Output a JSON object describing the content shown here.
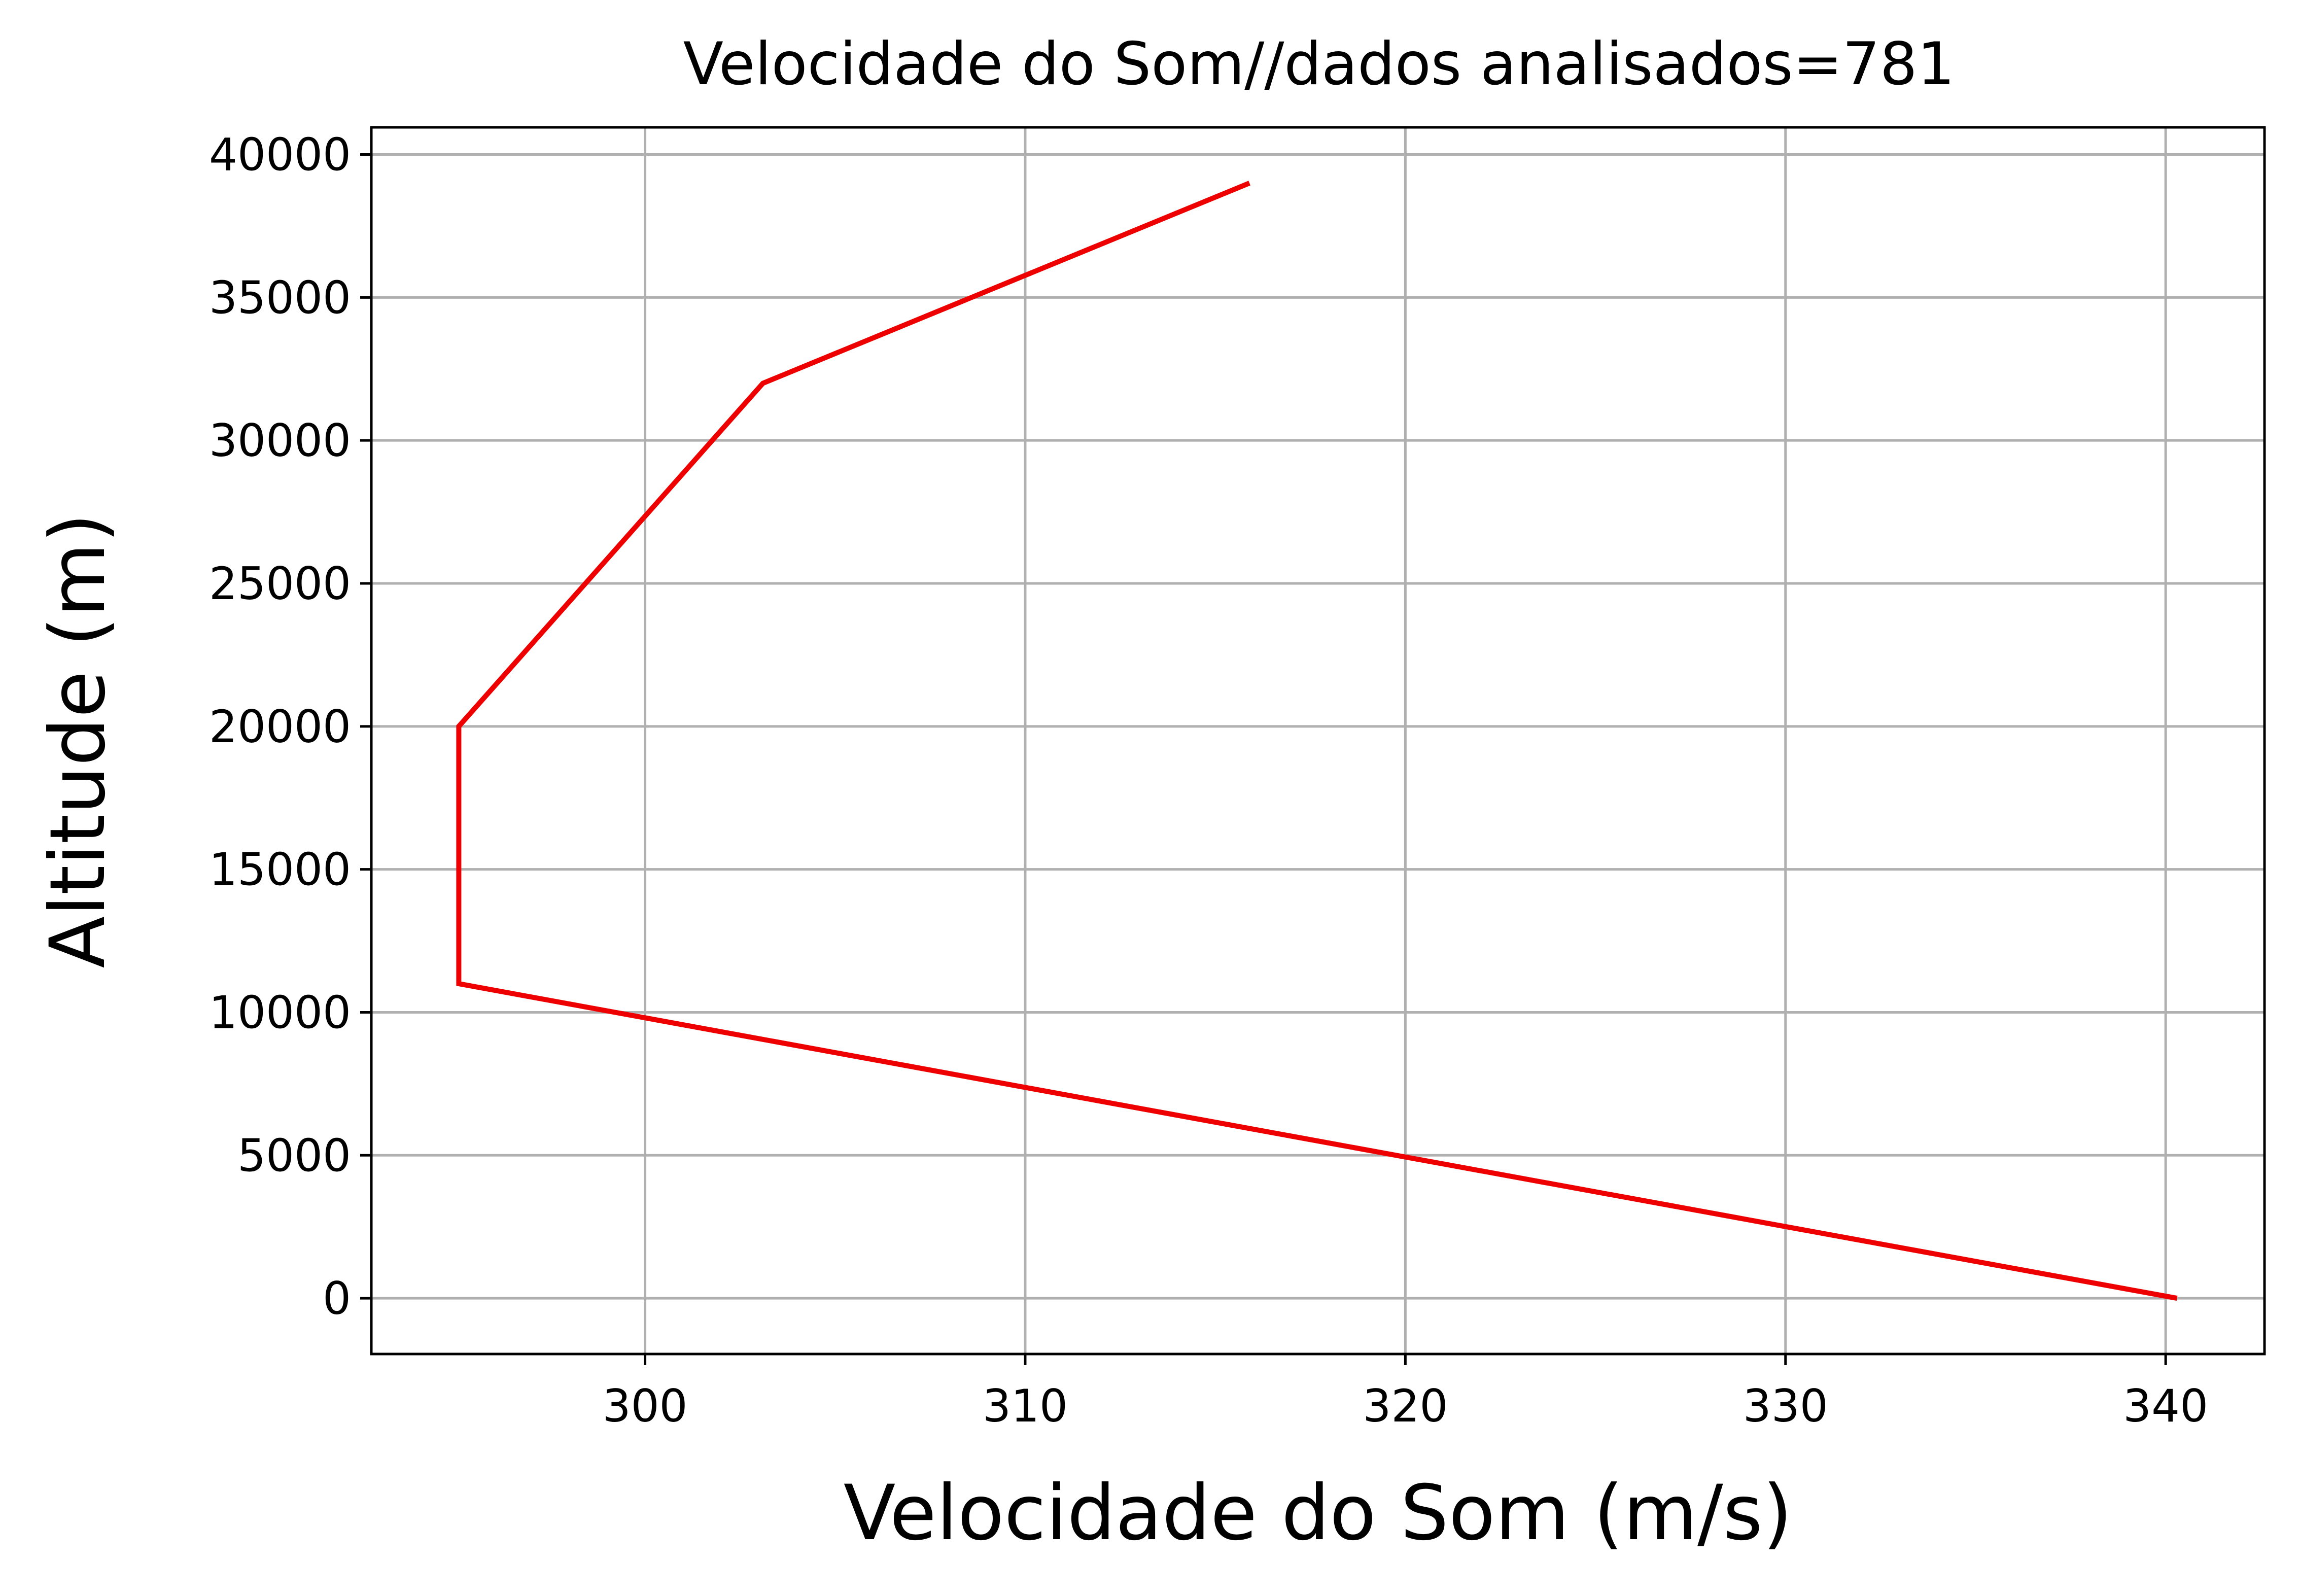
{
  "chart_data": {
    "type": "line",
    "title": "Velocidade do Som//dados analisados=781",
    "xlabel": "Velocidade do Som (m/s)",
    "ylabel": "Altitude (m)",
    "xlim": [
      292.8,
      342.6
    ],
    "ylim": [
      -1950,
      40950
    ],
    "x_ticks": [
      300,
      310,
      320,
      330,
      340
    ],
    "x_tick_labels": [
      "300",
      "310",
      "320",
      "330",
      "340"
    ],
    "y_ticks": [
      0,
      5000,
      10000,
      15000,
      20000,
      25000,
      30000,
      35000,
      40000
    ],
    "y_tick_labels": [
      "0",
      "5000",
      "10000",
      "15000",
      "20000",
      "25000",
      "30000",
      "35000",
      "40000"
    ],
    "grid": true,
    "series": [
      {
        "color": "#ee0000",
        "points": [
          {
            "x": 340.3,
            "y": 0
          },
          {
            "x": 295.1,
            "y": 11000
          },
          {
            "x": 295.1,
            "y": 20000
          },
          {
            "x": 303.1,
            "y": 32000
          },
          {
            "x": 315.9,
            "y": 39000
          }
        ]
      }
    ]
  }
}
